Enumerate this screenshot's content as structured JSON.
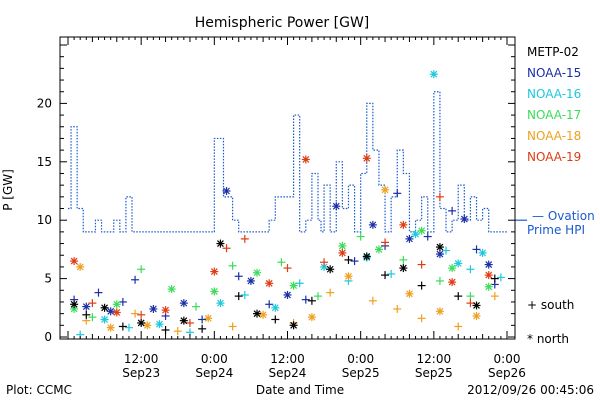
{
  "chart_data": {
    "type": "scatter",
    "title": "Hemispheric Power [GW]",
    "ylabel": "P [GW]",
    "xlabel": "Date and Time",
    "ylim": [
      0,
      25
    ],
    "xlim_hours": [
      0,
      72
    ],
    "y_ticks": [
      0,
      5,
      10,
      15,
      20
    ],
    "x_ticks": [
      {
        "hour": 12,
        "line1": "12:00",
        "line2": "Sep23"
      },
      {
        "hour": 24,
        "line1": "0:00",
        "line2": "Sep24"
      },
      {
        "hour": 36,
        "line1": "12:00",
        "line2": "Sep24"
      },
      {
        "hour": 48,
        "line1": "0:00",
        "line2": "Sep25"
      },
      {
        "hour": 60,
        "line1": "12:00",
        "line2": "Sep25"
      },
      {
        "hour": 72,
        "line1": "0:00",
        "line2": "Sep26"
      }
    ],
    "footer_left": "Plot: CCMC",
    "footer_right": "2012/09/26 00:45:06",
    "legend": {
      "entries": [
        {
          "name": "METP-02",
          "color": "#000000"
        },
        {
          "name": "NOAA-15",
          "color": "#1a2fa8"
        },
        {
          "name": "NOAA-16",
          "color": "#1ec8dc"
        },
        {
          "name": "NOAA-17",
          "color": "#3cdc5a"
        },
        {
          "name": "NOAA-18",
          "color": "#f0a020"
        },
        {
          "name": "NOAA-19",
          "color": "#e03c14"
        }
      ],
      "ovation_label_1": "— Ovation",
      "ovation_label_2": "Prime HPI",
      "ovation_color": "#1a5ad0",
      "marker_south": "+ south",
      "marker_north": "* north"
    },
    "ovation_series": {
      "name": "Ovation Prime HPI",
      "color": "#1a5ad0",
      "x": [
        0,
        0.5,
        1.5,
        2.5,
        4.5,
        5.5,
        7.5,
        8.5,
        9.5,
        10.5,
        11.5,
        23,
        24,
        25.5,
        27,
        28,
        32,
        33,
        34,
        37,
        38,
        39,
        40,
        41,
        41.5,
        42,
        43,
        44,
        45,
        46,
        47,
        48,
        49,
        50,
        51,
        52,
        53,
        54,
        55,
        56,
        57,
        58,
        59,
        60,
        61,
        62,
        63,
        64,
        65,
        66,
        67,
        68,
        69,
        70,
        71,
        72
      ],
      "y": [
        11,
        18,
        11,
        9,
        10,
        9,
        10,
        9,
        12,
        9,
        9,
        9,
        17,
        12,
        10,
        9,
        9,
        10,
        12,
        19,
        9,
        10,
        14,
        10,
        9,
        13,
        9,
        15,
        11,
        13,
        9,
        14,
        20,
        16,
        13,
        9,
        12,
        16,
        14,
        9,
        10,
        12,
        9,
        21,
        11,
        9,
        10,
        13,
        10,
        12,
        10,
        11,
        9,
        9,
        9,
        9
      ]
    },
    "series": [
      {
        "name": "NOAA-15",
        "color": "#1a2fa8",
        "points": [
          [
            1,
            3.2,
            "+"
          ],
          [
            3,
            2.6,
            "*"
          ],
          [
            5,
            3.8,
            "+"
          ],
          [
            7,
            2.2,
            "*"
          ],
          [
            9,
            3.0,
            "+"
          ],
          [
            11,
            4.9,
            "+"
          ],
          [
            14,
            2.4,
            "*"
          ],
          [
            16,
            1.8,
            "+"
          ],
          [
            19,
            2.9,
            "*"
          ],
          [
            22,
            1.5,
            "+"
          ],
          [
            26,
            12.5,
            "*"
          ],
          [
            28,
            5.2,
            "+"
          ],
          [
            30,
            4.8,
            "*"
          ],
          [
            33,
            2.8,
            "+"
          ],
          [
            36,
            3.6,
            "*"
          ],
          [
            39,
            3.2,
            "+"
          ],
          [
            44,
            11.2,
            "*"
          ],
          [
            47,
            6.5,
            "+"
          ],
          [
            50,
            9.6,
            "*"
          ],
          [
            52,
            7.8,
            "+"
          ],
          [
            54,
            12.3,
            "+"
          ],
          [
            56,
            8.4,
            "*"
          ],
          [
            59,
            8.6,
            "+"
          ],
          [
            61,
            7.1,
            "*"
          ],
          [
            63,
            10.8,
            "+"
          ],
          [
            65,
            10.1,
            "*"
          ],
          [
            67,
            7.5,
            "+"
          ],
          [
            69,
            6.2,
            "*"
          ],
          [
            70,
            4.5,
            "+"
          ]
        ]
      },
      {
        "name": "NOAA-16",
        "color": "#1ec8dc",
        "points": [
          [
            2,
            0.2,
            "+"
          ],
          [
            6,
            1.5,
            "*"
          ],
          [
            10,
            0.8,
            "+"
          ],
          [
            15,
            1.1,
            "*"
          ],
          [
            20,
            0.4,
            "+"
          ],
          [
            25,
            2.9,
            "*"
          ],
          [
            29,
            3.6,
            "+"
          ],
          [
            34,
            2.5,
            "*"
          ],
          [
            38,
            4.6,
            "+"
          ],
          [
            42,
            6.0,
            "*"
          ],
          [
            46,
            4.8,
            "+"
          ],
          [
            49,
            6.8,
            "*"
          ],
          [
            53,
            5.4,
            "+"
          ],
          [
            57,
            8.8,
            "*"
          ],
          [
            60,
            22.5,
            "*"
          ],
          [
            62,
            7.4,
            "+"
          ],
          [
            64,
            6.3,
            "*"
          ],
          [
            66,
            5.8,
            "+"
          ],
          [
            68,
            7.2,
            "*"
          ],
          [
            71,
            5.1,
            "+"
          ]
        ]
      },
      {
        "name": "NOAA-17",
        "color": "#3cdc5a",
        "points": [
          [
            1,
            2.4,
            "*"
          ],
          [
            4,
            1.7,
            "+"
          ],
          [
            8,
            2.8,
            "*"
          ],
          [
            12,
            5.8,
            "+"
          ],
          [
            17,
            4.1,
            "*"
          ],
          [
            21,
            2.6,
            "+"
          ],
          [
            24,
            3.9,
            "*"
          ],
          [
            27,
            6.1,
            "+"
          ],
          [
            31,
            5.5,
            "*"
          ],
          [
            35,
            6.4,
            "+"
          ],
          [
            37,
            4.4,
            "*"
          ],
          [
            41,
            3.5,
            "+"
          ],
          [
            45,
            7.8,
            "*"
          ],
          [
            48,
            8.6,
            "+"
          ],
          [
            51,
            7.5,
            "*"
          ],
          [
            55,
            6.6,
            "+"
          ],
          [
            58,
            9.1,
            "*"
          ],
          [
            61,
            4.8,
            "+"
          ],
          [
            63,
            5.9,
            "*"
          ],
          [
            66,
            3.5,
            "+"
          ],
          [
            69,
            4.3,
            "*"
          ]
        ]
      },
      {
        "name": "NOAA-18",
        "color": "#f0a020",
        "points": [
          [
            2,
            6.0,
            "*"
          ],
          [
            3,
            1.4,
            "+"
          ],
          [
            7,
            0.8,
            "*"
          ],
          [
            11,
            2.0,
            "+"
          ],
          [
            13,
            1.0,
            "*"
          ],
          [
            18,
            0.5,
            "+"
          ],
          [
            23,
            1.6,
            "*"
          ],
          [
            27,
            0.9,
            "+"
          ],
          [
            32,
            1.9,
            "*"
          ],
          [
            37,
            1.2,
            "+"
          ],
          [
            40,
            1.7,
            "*"
          ],
          [
            43,
            3.8,
            "+"
          ],
          [
            46,
            5.2,
            "*"
          ],
          [
            50,
            3.1,
            "+"
          ],
          [
            52,
            12.6,
            "*"
          ],
          [
            54,
            2.4,
            "+"
          ],
          [
            56,
            3.7,
            "*"
          ],
          [
            58,
            1.6,
            "+"
          ],
          [
            61,
            2.2,
            "*"
          ],
          [
            64,
            0.9,
            "+"
          ],
          [
            67,
            1.8,
            "*"
          ],
          [
            70,
            3.5,
            "+"
          ]
        ]
      },
      {
        "name": "NOAA-19",
        "color": "#e03c14",
        "points": [
          [
            1,
            6.5,
            "*"
          ],
          [
            4,
            2.9,
            "+"
          ],
          [
            8,
            2.1,
            "*"
          ],
          [
            12,
            1.9,
            "+"
          ],
          [
            16,
            2.3,
            "*"
          ],
          [
            20,
            1.2,
            "+"
          ],
          [
            24,
            5.6,
            "*"
          ],
          [
            26,
            7.6,
            "+"
          ],
          [
            29,
            8.4,
            "+"
          ],
          [
            33,
            4.6,
            "*"
          ],
          [
            36,
            5.9,
            "+"
          ],
          [
            39,
            15.2,
            "*"
          ],
          [
            42,
            6.4,
            "+"
          ],
          [
            45,
            7.2,
            "*"
          ],
          [
            49,
            15.3,
            "*"
          ],
          [
            52,
            8.1,
            "+"
          ],
          [
            55,
            9.6,
            "*"
          ],
          [
            58,
            6.2,
            "+"
          ],
          [
            61,
            12.0,
            "+"
          ],
          [
            63,
            4.7,
            "*"
          ],
          [
            66,
            2.9,
            "+"
          ],
          [
            69,
            5.3,
            "*"
          ]
        ]
      },
      {
        "name": "METP-02",
        "color": "#000000",
        "points": [
          [
            1,
            2.8,
            "*"
          ],
          [
            3,
            1.9,
            "+"
          ],
          [
            6,
            2.5,
            "*"
          ],
          [
            9,
            0.9,
            "+"
          ],
          [
            12,
            1.2,
            "*"
          ],
          [
            16,
            0.6,
            "+"
          ],
          [
            19,
            1.4,
            "*"
          ],
          [
            22,
            0.7,
            "+"
          ],
          [
            25,
            8.0,
            "*"
          ],
          [
            28,
            3.5,
            "+"
          ],
          [
            31,
            2.0,
            "*"
          ],
          [
            34,
            1.5,
            "+"
          ],
          [
            37,
            1.0,
            "*"
          ],
          [
            40,
            3.1,
            "+"
          ],
          [
            43,
            5.8,
            "*"
          ],
          [
            46,
            6.6,
            "+"
          ],
          [
            49,
            6.9,
            "*"
          ],
          [
            52,
            5.3,
            "+"
          ],
          [
            55,
            5.9,
            "*"
          ],
          [
            58,
            4.4,
            "+"
          ],
          [
            61,
            7.7,
            "*"
          ],
          [
            64,
            3.5,
            "+"
          ],
          [
            67,
            2.7,
            "*"
          ],
          [
            70,
            5.0,
            "+"
          ]
        ]
      }
    ]
  }
}
